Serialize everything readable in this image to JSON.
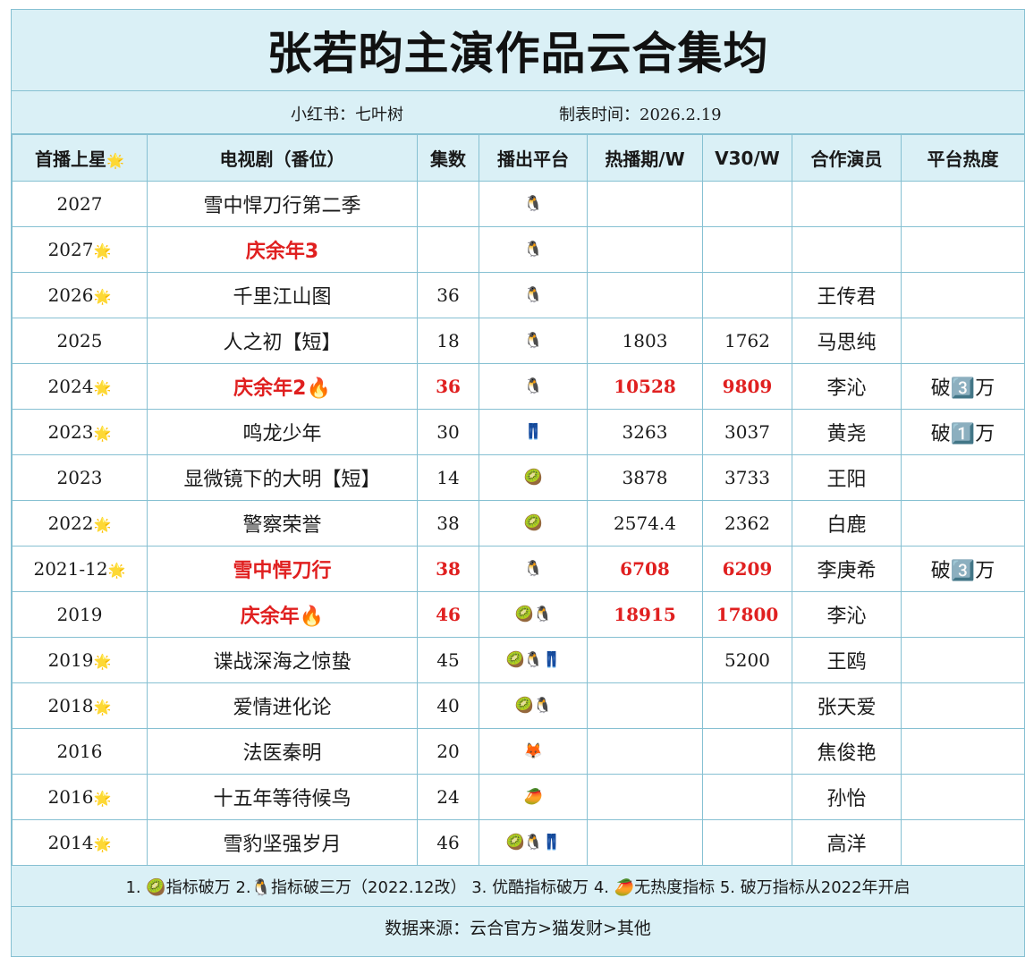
{
  "title": "张若昀主演作品云合集均",
  "meta": {
    "author_label": "小红书：",
    "author": "七叶树",
    "made_label": "制表时间：",
    "made_date": "2026.2.19"
  },
  "headers": {
    "premiere": "首播上星",
    "premiere_icon": "🌟",
    "drama": "电视剧（番位）",
    "episodes": "集数",
    "platform": "播出平台",
    "peak": "热播期/W",
    "v30": "V30/W",
    "costar": "合作演员",
    "heat": "平台热度"
  },
  "rows": [
    {
      "year": "2027",
      "star": "",
      "title": "雪中悍刀行第二季",
      "episodes": "",
      "platforms": "🐧",
      "peak": "",
      "v30": "",
      "costar": "",
      "heat": "",
      "highlight": false
    },
    {
      "year": "2027",
      "star": "🌟",
      "title": "庆余年3",
      "episodes": "",
      "platforms": "🐧",
      "peak": "",
      "v30": "",
      "costar": "",
      "heat": "",
      "highlight": true
    },
    {
      "year": "2026",
      "star": "🌟",
      "title": "千里江山图",
      "episodes": "36",
      "platforms": "🐧",
      "peak": "",
      "v30": "",
      "costar": "王传君",
      "heat": "",
      "highlight": false
    },
    {
      "year": "2025",
      "star": "",
      "title": "人之初【短】",
      "episodes": "18",
      "platforms": "🐧",
      "peak": "1803",
      "v30": "1762",
      "costar": "马思纯",
      "heat": "",
      "highlight": false
    },
    {
      "year": "2024",
      "star": "🌟",
      "title": "庆余年2🔥",
      "episodes": "36",
      "platforms": "🐧",
      "peak": "10528",
      "v30": "9809",
      "costar": "李沁",
      "heat": "破3️⃣万",
      "highlight": true
    },
    {
      "year": "2023",
      "star": "🌟",
      "title": "鸣龙少年",
      "episodes": "30",
      "platforms": "👖",
      "peak": "3263",
      "v30": "3037",
      "costar": "黄尧",
      "heat": "破1️⃣万",
      "highlight": false
    },
    {
      "year": "2023",
      "star": "",
      "title": "显微镜下的大明【短】",
      "episodes": "14",
      "platforms": "🥝",
      "peak": "3878",
      "v30": "3733",
      "costar": "王阳",
      "heat": "",
      "highlight": false
    },
    {
      "year": "2022",
      "star": "🌟",
      "title": "警察荣誉",
      "episodes": "38",
      "platforms": "🥝",
      "peak": "2574.4",
      "v30": "2362",
      "costar": "白鹿",
      "heat": "",
      "highlight": false
    },
    {
      "year": "2021-12",
      "star": "🌟",
      "title": "雪中悍刀行",
      "episodes": "38",
      "platforms": "🐧",
      "peak": "6708",
      "v30": "6209",
      "costar": "李庚希",
      "heat": "破3️⃣万",
      "highlight": true
    },
    {
      "year": "2019",
      "star": "",
      "title": "庆余年🔥",
      "episodes": "46",
      "platforms": "🥝🐧",
      "peak": "18915",
      "v30": "17800",
      "costar": "李沁",
      "heat": "",
      "highlight": true
    },
    {
      "year": "2019",
      "star": "🌟",
      "title": "谍战深海之惊蛰",
      "episodes": "45",
      "platforms": "🥝🐧👖",
      "peak": "",
      "v30": "5200",
      "costar": "王鸥",
      "heat": "",
      "highlight": false
    },
    {
      "year": "2018",
      "star": "🌟",
      "title": "爱情进化论",
      "episodes": "40",
      "platforms": "🥝🐧",
      "peak": "",
      "v30": "",
      "costar": "张天爱",
      "heat": "",
      "highlight": false
    },
    {
      "year": "2016",
      "star": "",
      "title": "法医秦明",
      "episodes": "20",
      "platforms": "🦊",
      "peak": "",
      "v30": "",
      "costar": "焦俊艳",
      "heat": "",
      "highlight": false
    },
    {
      "year": "2016",
      "star": "🌟",
      "title": "十五年等待候鸟",
      "episodes": "24",
      "platforms": "🥭",
      "peak": "",
      "v30": "",
      "costar": "孙怡",
      "heat": "",
      "highlight": false
    },
    {
      "year": "2014",
      "star": "🌟",
      "title": "雪豹坚强岁月",
      "episodes": "46",
      "platforms": "🥝🐧👖",
      "peak": "",
      "v30": "",
      "costar": "高洋",
      "heat": "",
      "highlight": false
    }
  ],
  "notes": "1. 🥝指标破万 2.🐧指标破三万（2022.12改） 3. 优酷指标破万 4. 🥭无热度指标 5. 破万指标从2022年开启",
  "source": "数据来源：云合官方>猫发财>其他"
}
